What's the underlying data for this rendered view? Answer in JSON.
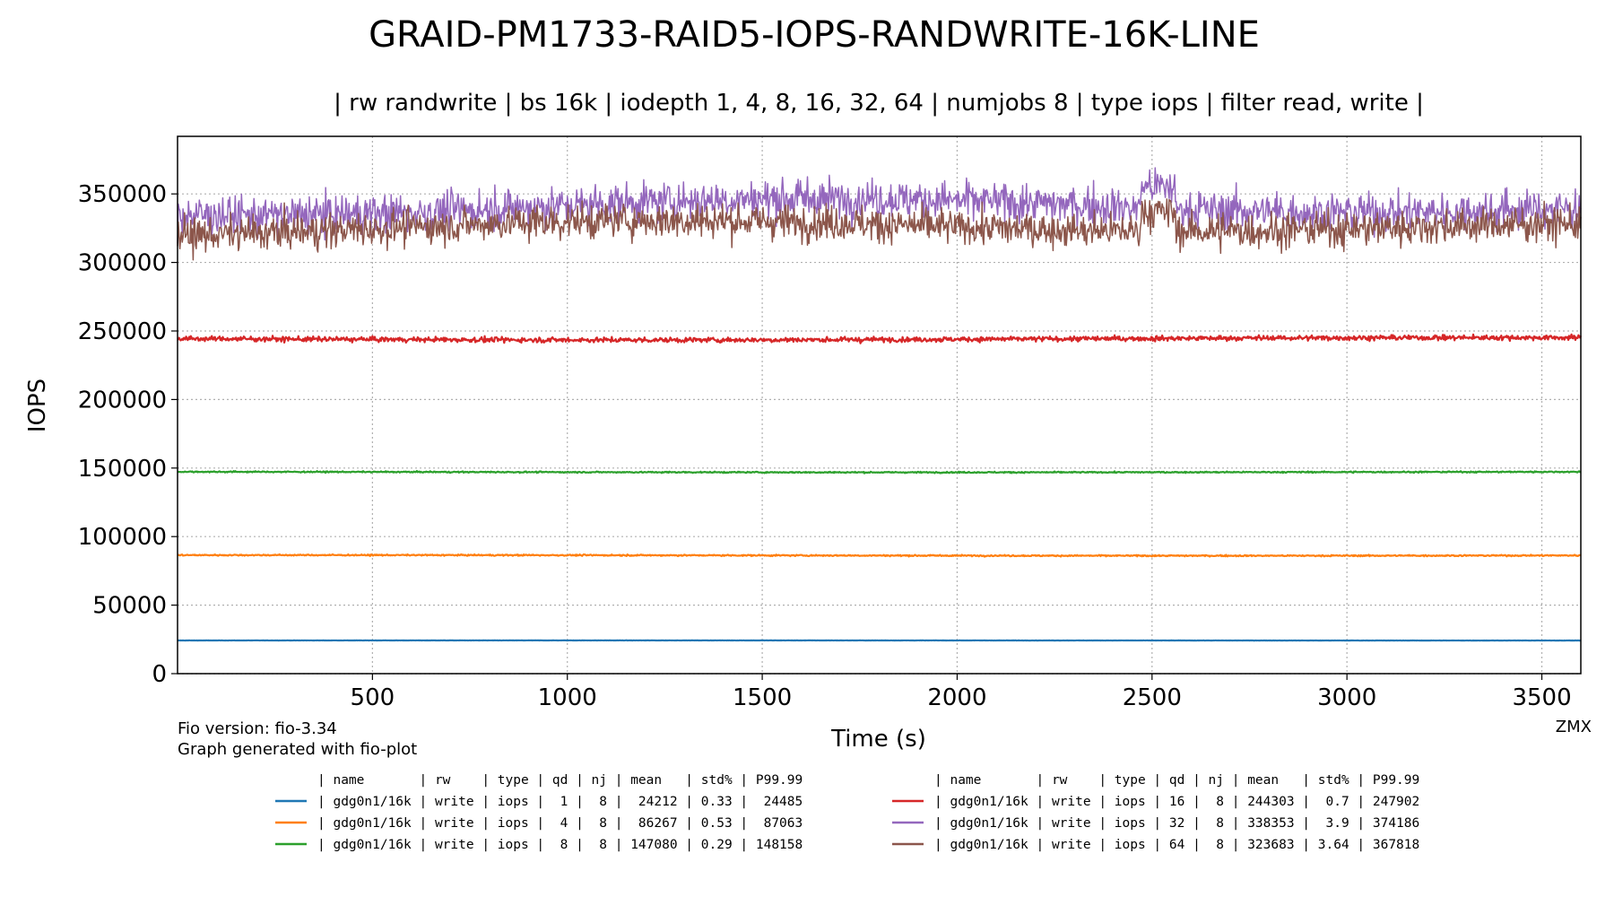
{
  "chart_data": {
    "type": "line",
    "title": "GRAID-PM1733-RAID5-IOPS-RANDWRITE-16K-LINE",
    "subtitle": "| rw randwrite | bs 16k | iodepth 1, 4, 8, 16, 32, 64 | numjobs 8 | type iops | filter read, write |",
    "xlabel": "Time (s)",
    "ylabel": "IOPS",
    "xlim": [
      0,
      3600
    ],
    "ylim": [
      0,
      392000
    ],
    "xticks": [
      500,
      1000,
      1500,
      2000,
      2500,
      3000,
      3500
    ],
    "xtick_labels": [
      "500",
      "1000",
      "1500",
      "2000",
      "2500",
      "3000",
      "3500"
    ],
    "yticks": [
      0,
      50000,
      100000,
      150000,
      200000,
      250000,
      300000,
      350000
    ],
    "ytick_labels": [
      "0",
      "50000",
      "100000",
      "150000",
      "200000",
      "250000",
      "300000",
      "350000"
    ],
    "grid": true,
    "legend_placement": "bottom",
    "series": [
      {
        "name": "| gdg0n1/16k | write | iops |  1 |  8 |  24212 | 0.33 |  24485",
        "color": "#1f77b4",
        "mean": 24212,
        "std_pct": 0.33,
        "p9999": 24485
      },
      {
        "name": "| gdg0n1/16k | write | iops |  4 |  8 |  86267 | 0.53 |  87063",
        "color": "#ff7f0e",
        "mean": 86267,
        "std_pct": 0.53,
        "p9999": 87063
      },
      {
        "name": "| gdg0n1/16k | write | iops |  8 |  8 | 147080 | 0.29 | 148158",
        "color": "#2ca02c",
        "mean": 147080,
        "std_pct": 0.29,
        "p9999": 148158
      },
      {
        "name": "| gdg0n1/16k | write | iops | 16 |  8 | 244303 |  0.7 | 247902",
        "color": "#d62728",
        "mean": 244303,
        "std_pct": 0.7,
        "p9999": 247902
      },
      {
        "name": "| gdg0n1/16k | write | iops | 32 |  8 | 338353 |  3.9 | 374186",
        "color": "#9467bd",
        "mean": 338353,
        "std_pct": 3.9,
        "p9999": 374186
      },
      {
        "name": "| gdg0n1/16k | write | iops | 64 |  8 | 323683 | 3.64 | 367818",
        "color": "#8c564b",
        "mean": 323683,
        "std_pct": 3.64,
        "p9999": 367818
      }
    ],
    "legend_header": "| name       | rw    | type | qd | nj | mean   | std% | P99.99"
  },
  "footer": {
    "fio_version": "Fio version: fio-3.34",
    "generated": "Graph generated with fio-plot",
    "author": "ZMX"
  }
}
